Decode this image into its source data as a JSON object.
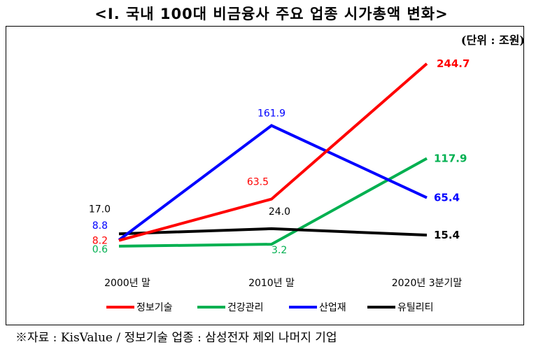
{
  "title": "<Ⅰ. 국내 100대 비금융사 주요 업종 시가총액 변화>",
  "unit": "(단위 : 조원)",
  "source": "※자료 : KisValue / 정보기술 업종 : 삼성전자 제외 나머지 기업",
  "chart_data": {
    "type": "line",
    "title": "<Ⅰ. 국내 100대 비금융사 주요 업종 시가총액 변화>",
    "unit": "(단위 : 조원)",
    "categories": [
      "2000년 말",
      "2010년 말",
      "2020년 3분기말"
    ],
    "legend_position": "bottom",
    "grid": false,
    "series": [
      {
        "name": "정보기술",
        "color": "#ff0000",
        "values": [
          8.2,
          63.5,
          244.7
        ],
        "labels": [
          "8.2",
          "63.5",
          "244.7"
        ]
      },
      {
        "name": "건강관리",
        "color": "#00b050",
        "values": [
          0.6,
          3.2,
          117.9
        ],
        "labels": [
          "0.6",
          "3.2",
          "117.9"
        ]
      },
      {
        "name": "산업재",
        "color": "#0000ff",
        "values": [
          8.8,
          161.9,
          65.4
        ],
        "labels": [
          "8.8",
          "161.9",
          "65.4"
        ]
      },
      {
        "name": "유틸리티",
        "color": "#000000",
        "values": [
          17.0,
          24.0,
          15.4
        ],
        "labels": [
          "17.0",
          "24.0",
          "15.4"
        ]
      }
    ]
  }
}
